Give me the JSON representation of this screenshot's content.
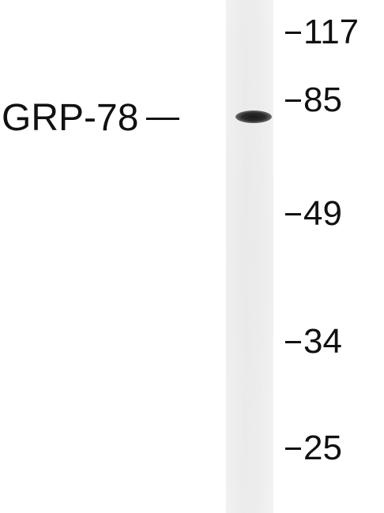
{
  "blot": {
    "protein_label": "GRP-78",
    "markers": [
      {
        "label": "117",
        "kda": 117
      },
      {
        "label": "85",
        "kda": 85
      },
      {
        "label": "49",
        "kda": 49
      },
      {
        "label": "34",
        "kda": 34
      },
      {
        "label": "25",
        "kda": 25
      }
    ],
    "band_color": "#1f1f1f",
    "lane_color": "#ededee"
  }
}
